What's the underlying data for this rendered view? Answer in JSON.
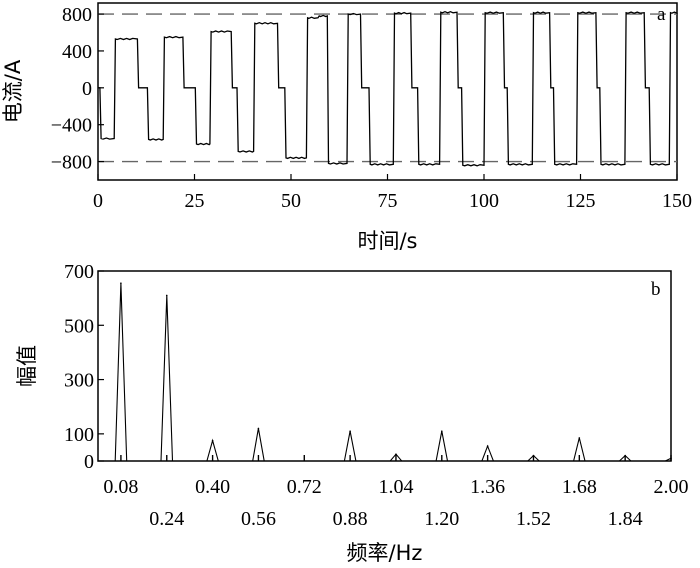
{
  "chart_data": [
    {
      "type": "line",
      "panel_label": "a",
      "xlabel": "时间/s",
      "ylabel": "电流/A",
      "xlim": [
        0,
        150
      ],
      "ylim": [
        -1000,
        920
      ],
      "xticks": [
        0,
        25,
        50,
        75,
        100,
        125,
        150
      ],
      "yticks": [
        800,
        400,
        0,
        -400,
        -800
      ],
      "ytick_labels": [
        "800",
        "400",
        "0",
        "−400",
        "−800"
      ],
      "reference_lines": [
        800,
        -800
      ],
      "grid": false,
      "series": [
        {
          "pulses": [
            {
              "start": 0.5,
              "end": 3.0,
              "level": -550
            },
            {
              "start": 4.2,
              "end": 9.0,
              "level": 530
            },
            {
              "start": 10.2,
              "end": 12.5,
              "level": 0
            },
            {
              "start": 12.8,
              "end": 16.5,
              "level": -560
            },
            {
              "start": 16.9,
              "end": 21.0,
              "level": 550
            },
            {
              "start": 22.0,
              "end": 24.8,
              "level": 0
            },
            {
              "start": 25.2,
              "end": 28.8,
              "level": -610
            },
            {
              "start": 29.0,
              "end": 33.5,
              "level": 610
            },
            {
              "start": 34.5,
              "end": 35.8,
              "level": 0
            },
            {
              "start": 36.0,
              "end": 40.0,
              "level": -690
            },
            {
              "start": 40.3,
              "end": 45.5,
              "level": 700
            },
            {
              "start": 46.5,
              "end": 48.0,
              "level": 0
            },
            {
              "start": 48.4,
              "end": 53.5,
              "level": -760
            },
            {
              "start": 54.0,
              "end": 56.0,
              "level": 760
            },
            {
              "start": 57.0,
              "end": 59.0,
              "level": 780
            },
            {
              "start": 59.4,
              "end": 63.5,
              "level": -820
            },
            {
              "start": 64.5,
              "end": 67.0,
              "level": 800
            },
            {
              "start": 68.0,
              "end": 70.0,
              "level": 0
            },
            {
              "start": 70.2,
              "end": 75.5,
              "level": -830
            },
            {
              "start": 76.5,
              "end": 80.0,
              "level": 810
            },
            {
              "start": 81.0,
              "end": 82.5,
              "level": 0
            },
            {
              "start": 82.8,
              "end": 87.5,
              "level": -830
            },
            {
              "start": 88.5,
              "end": 92.0,
              "level": 820
            },
            {
              "start": 93.0,
              "end": 94.0,
              "level": 0
            },
            {
              "start": 94.2,
              "end": 99.0,
              "level": -840
            },
            {
              "start": 100.0,
              "end": 104.0,
              "level": 815
            },
            {
              "start": 105.0,
              "end": 105.8,
              "level": 0
            },
            {
              "start": 106.0,
              "end": 111.5,
              "level": -830
            },
            {
              "start": 112.5,
              "end": 116.0,
              "level": 815
            },
            {
              "start": 117.0,
              "end": 117.8,
              "level": 0
            },
            {
              "start": 118.0,
              "end": 123.0,
              "level": -830
            },
            {
              "start": 124.0,
              "end": 128.0,
              "level": 815
            },
            {
              "start": 129.0,
              "end": 129.8,
              "level": 0
            },
            {
              "start": 130.0,
              "end": 135.5,
              "level": -830
            },
            {
              "start": 136.5,
              "end": 140.5,
              "level": 815
            },
            {
              "start": 141.5,
              "end": 142.5,
              "level": 0
            },
            {
              "start": 142.8,
              "end": 147.0,
              "level": -830
            },
            {
              "start": 148.0,
              "end": 150.0,
              "level": 815
            }
          ]
        }
      ]
    },
    {
      "type": "line",
      "panel_label": "b",
      "xlabel": "频率/Hz",
      "ylabel": "幅值",
      "xlim": [
        0,
        2.0
      ],
      "ylim": [
        0,
        700
      ],
      "xticks": [
        0.08,
        0.24,
        0.4,
        0.56,
        0.72,
        0.88,
        1.04,
        1.2,
        1.36,
        1.52,
        1.68,
        1.84,
        2.0
      ],
      "xtick_labels": [
        "0.08",
        "0.24",
        "0.40",
        "0.56",
        "0.72",
        "0.88",
        "1.04",
        "1.20",
        "1.36",
        "1.52",
        "1.68",
        "1.84",
        "2.00"
      ],
      "yticks": [
        0,
        100,
        300,
        500,
        700
      ],
      "grid": false,
      "series": [
        {
          "peaks": [
            {
              "f": 0.08,
              "amp": 655
            },
            {
              "f": 0.24,
              "amp": 610
            },
            {
              "f": 0.4,
              "amp": 75
            },
            {
              "f": 0.56,
              "amp": 120
            },
            {
              "f": 0.88,
              "amp": 110
            },
            {
              "f": 1.04,
              "amp": 25
            },
            {
              "f": 1.2,
              "amp": 110
            },
            {
              "f": 1.36,
              "amp": 55
            },
            {
              "f": 1.52,
              "amp": 20
            },
            {
              "f": 1.68,
              "amp": 85
            },
            {
              "f": 1.84,
              "amp": 20
            },
            {
              "f": 2.0,
              "amp": 10
            }
          ]
        }
      ]
    }
  ]
}
